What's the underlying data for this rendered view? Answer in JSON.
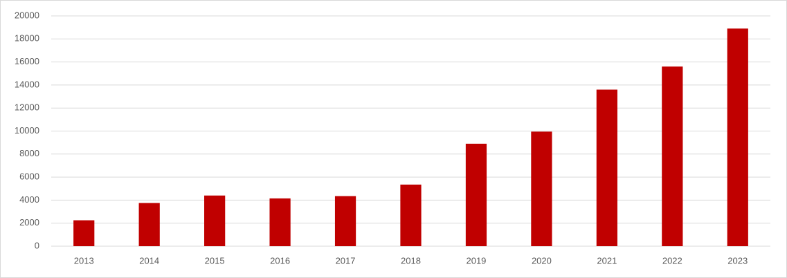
{
  "chart_data": {
    "type": "bar",
    "categories": [
      "2013",
      "2014",
      "2015",
      "2016",
      "2017",
      "2018",
      "2019",
      "2020",
      "2021",
      "2022",
      "2023"
    ],
    "values": [
      2250,
      3750,
      4400,
      4150,
      4350,
      5350,
      8900,
      9950,
      13600,
      15600,
      18900
    ],
    "color": "#c00000",
    "ylim": [
      0,
      20000
    ],
    "yticks": [
      0,
      2000,
      4000,
      6000,
      8000,
      10000,
      12000,
      14000,
      16000,
      18000,
      20000
    ],
    "grid": true
  }
}
